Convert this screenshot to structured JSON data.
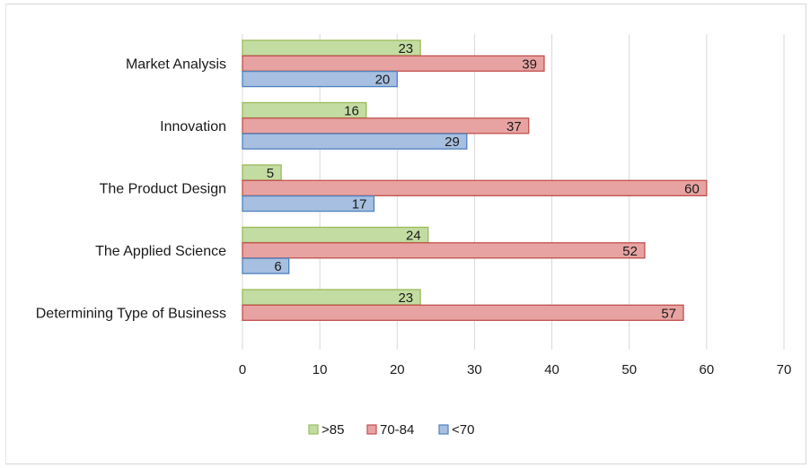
{
  "chart_data": {
    "type": "bar",
    "orientation": "horizontal",
    "categories": [
      "Market Analysis",
      "Innovation",
      "The Product Design",
      "The Applied Science",
      "Determining Type of Business"
    ],
    "series": [
      {
        "name": ">85",
        "values": [
          23,
          16,
          5,
          24,
          23
        ],
        "color": "#c3dca2",
        "stroke": "#9bbb59"
      },
      {
        "name": "70-84",
        "values": [
          39,
          37,
          60,
          52,
          57
        ],
        "color": "#e7a3a2",
        "stroke": "#c0504d"
      },
      {
        "name": "<70",
        "values": [
          20,
          29,
          17,
          6,
          null
        ],
        "color": "#a7bfe0",
        "stroke": "#4f81bd"
      }
    ],
    "xlim": [
      0,
      70
    ],
    "xticks": [
      0,
      10,
      20,
      30,
      40,
      50,
      60,
      70
    ],
    "grid": true,
    "data_labels": true,
    "legend": "bottom"
  }
}
